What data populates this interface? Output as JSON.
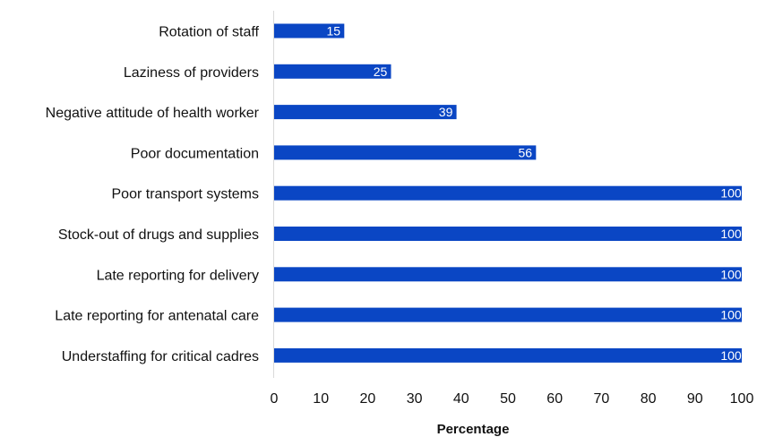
{
  "chart_data": {
    "type": "bar",
    "orientation": "horizontal",
    "categories": [
      "Rotation of staff",
      "Laziness of providers",
      "Negative attitude of health worker",
      "Poor documentation",
      "Poor transport systems",
      "Stock-out of drugs and supplies",
      "Late reporting for delivery",
      "Late reporting for antenatal care",
      "Understaffing for critical cadres"
    ],
    "values": [
      15,
      25,
      39,
      56,
      100,
      100,
      100,
      100,
      100
    ],
    "xlabel": "Percentage",
    "ylabel": "",
    "xlim": [
      0,
      100
    ],
    "xticks": [
      0,
      10,
      20,
      30,
      40,
      50,
      60,
      70,
      80,
      90,
      100
    ],
    "grid": false,
    "data_labels": true,
    "bar_color": "#0a46c4"
  }
}
